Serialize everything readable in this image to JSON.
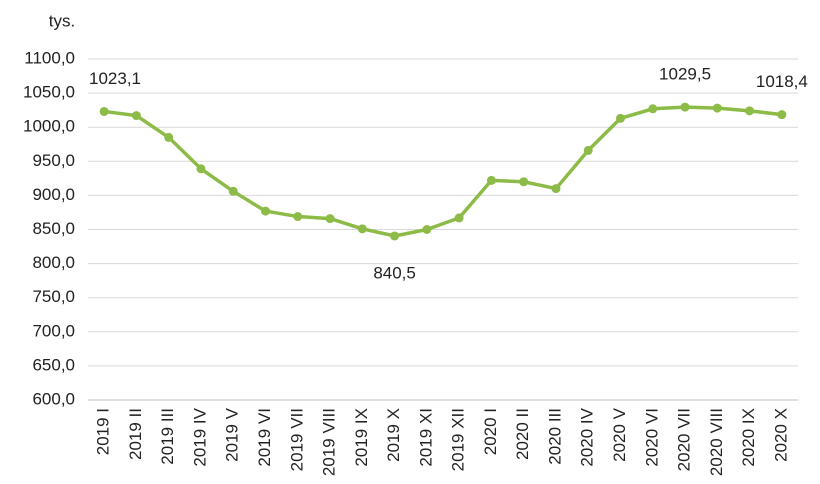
{
  "chart_data": {
    "type": "line",
    "y_label": "tys.",
    "categories": [
      "2019 I",
      "2019 II",
      "2019 III",
      "2019 IV",
      "2019 V",
      "2019 VI",
      "2019 VII",
      "2019 VIII",
      "2019 IX",
      "2019 X",
      "2019 XI",
      "2019 XII",
      "2020 I",
      "2020 II",
      "2020 III",
      "2020 IV",
      "2020 V",
      "2020 VI",
      "2020 VII",
      "2020 VIII",
      "2020 IX",
      "2020 X"
    ],
    "series": [
      {
        "name": "tys.",
        "color": "#8dbb47",
        "values": [
          1023.1,
          1017,
          985,
          939,
          906,
          877,
          869,
          866,
          851,
          840.5,
          850,
          867,
          922,
          920,
          910,
          966,
          1013,
          1027,
          1029.5,
          1028,
          1024,
          1018.4
        ],
        "value_labels": [
          "1023,1",
          null,
          null,
          null,
          null,
          null,
          null,
          null,
          null,
          "840,5",
          null,
          null,
          null,
          null,
          null,
          null,
          null,
          null,
          "1029,5",
          null,
          null,
          "1018,4"
        ]
      }
    ],
    "ylim": [
      600,
      1100
    ],
    "yticks": [
      {
        "value": 600,
        "label": "600,0"
      },
      {
        "value": 650,
        "label": "650,0"
      },
      {
        "value": 700,
        "label": "700,0"
      },
      {
        "value": 750,
        "label": "750,0"
      },
      {
        "value": 800,
        "label": "800,0"
      },
      {
        "value": 850,
        "label": "850,0"
      },
      {
        "value": 900,
        "label": "900,0"
      },
      {
        "value": 950,
        "label": "950,0"
      },
      {
        "value": 1000,
        "label": "1000,0"
      },
      {
        "value": 1050,
        "label": "1050,0"
      },
      {
        "value": 1100,
        "label": "1100,0"
      }
    ],
    "grid": true
  }
}
